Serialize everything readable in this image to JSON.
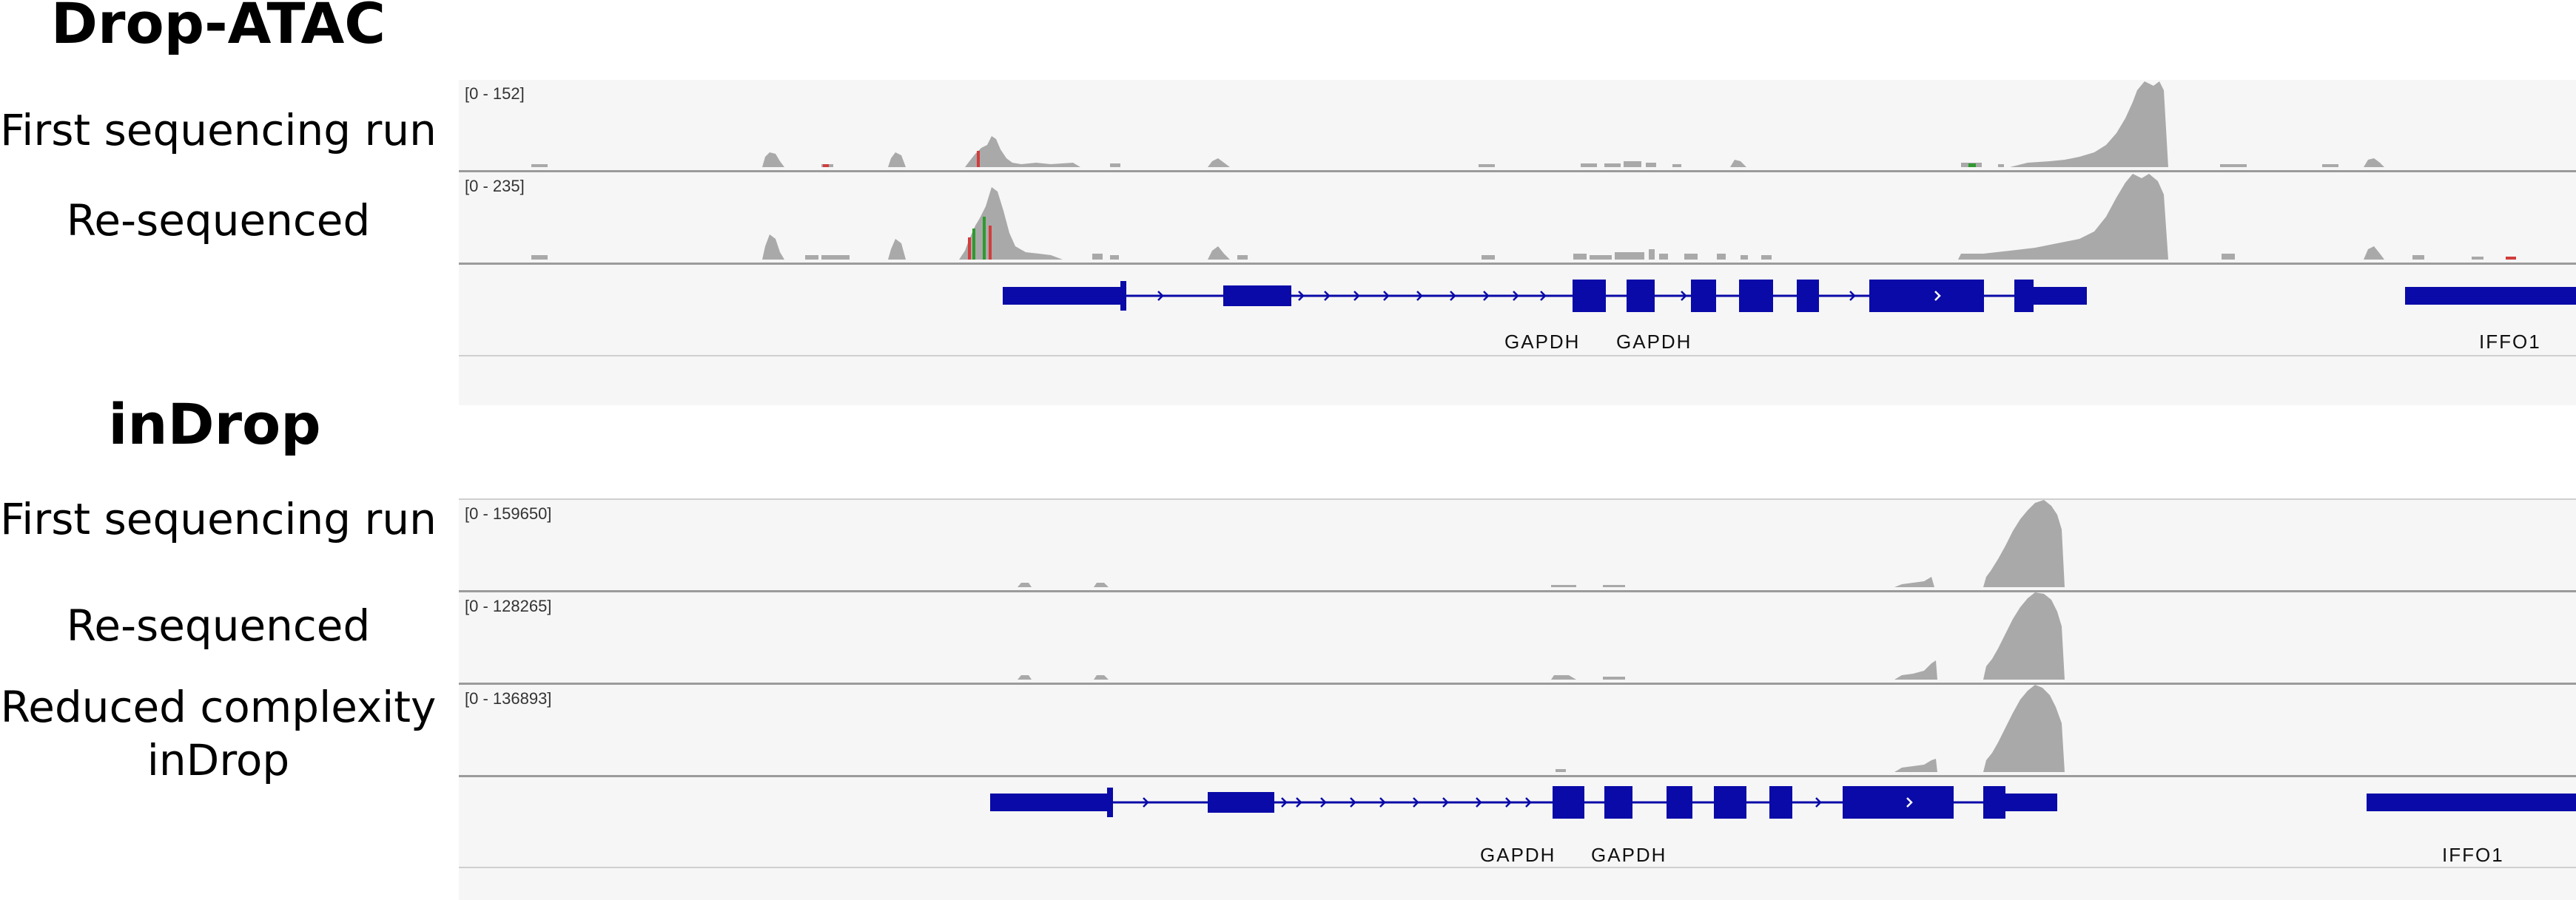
{
  "sections": [
    {
      "title": "Drop-ATAC",
      "tracks": [
        {
          "label": "First sequencing run",
          "range": "[0 - 152]"
        },
        {
          "label": "Re-sequenced",
          "range": "[0 - 235]"
        }
      ],
      "genes": [
        "GAPDH",
        "GAPDH",
        "IFFO1"
      ]
    },
    {
      "title": "inDrop",
      "tracks": [
        {
          "label": "First sequencing run",
          "range": "[0 - 159650]"
        },
        {
          "label": "Re-sequenced",
          "range": "[0 - 128265]"
        },
        {
          "label": "Reduced complexity inDrop",
          "label_lines": [
            "Reduced complexity",
            "inDrop"
          ],
          "range": "[0 - 136893]"
        }
      ],
      "genes": [
        "GAPDH",
        "GAPDH",
        "IFFO1"
      ]
    }
  ],
  "colors": {
    "coverage": "#a9a9a9",
    "gene_model": "#0a0aa8",
    "panel_bg": "#f6f6f6",
    "mismatch_red": "#d23c3c",
    "mismatch_green": "#2f9a2f"
  }
}
